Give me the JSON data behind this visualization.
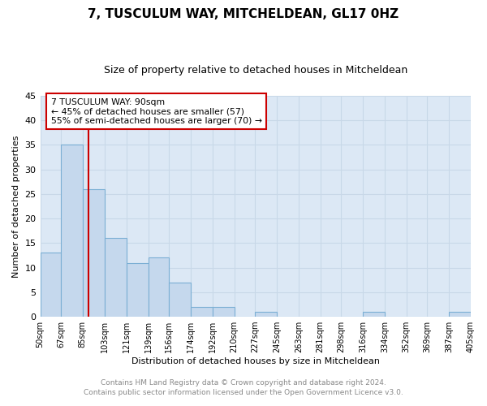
{
  "title": "7, TUSCULUM WAY, MITCHELDEAN, GL17 0HZ",
  "subtitle": "Size of property relative to detached houses in Mitcheldean",
  "xlabel": "Distribution of detached houses by size in Mitcheldean",
  "ylabel": "Number of detached properties",
  "footer_line1": "Contains HM Land Registry data © Crown copyright and database right 2024.",
  "footer_line2": "Contains public sector information licensed under the Open Government Licence v3.0.",
  "bins": [
    50,
    67,
    85,
    103,
    121,
    139,
    156,
    174,
    192,
    210,
    227,
    245,
    263,
    281,
    298,
    316,
    334,
    352,
    369,
    387,
    405
  ],
  "bin_labels": [
    "50sqm",
    "67sqm",
    "85sqm",
    "103sqm",
    "121sqm",
    "139sqm",
    "156sqm",
    "174sqm",
    "192sqm",
    "210sqm",
    "227sqm",
    "245sqm",
    "263sqm",
    "281sqm",
    "298sqm",
    "316sqm",
    "334sqm",
    "352sqm",
    "369sqm",
    "387sqm",
    "405sqm"
  ],
  "values": [
    13,
    35,
    26,
    16,
    11,
    12,
    7,
    2,
    2,
    0,
    1,
    0,
    0,
    0,
    0,
    1,
    0,
    0,
    0,
    1,
    0
  ],
  "bar_color": "#c5d8ed",
  "bar_edge_color": "#7bafd4",
  "grid_color": "#c8d8e8",
  "plot_bg_color": "#dce8f5",
  "fig_bg_color": "#ffffff",
  "vline_x": 90,
  "vline_color": "#cc0000",
  "ylim": [
    0,
    45
  ],
  "yticks": [
    0,
    5,
    10,
    15,
    20,
    25,
    30,
    35,
    40,
    45
  ],
  "annotation_box_text": "7 TUSCULUM WAY: 90sqm\n← 45% of detached houses are smaller (57)\n55% of semi-detached houses are larger (70) →",
  "annotation_box_color": "#cc0000",
  "annotation_box_bg": "#ffffff",
  "title_fontsize": 11,
  "subtitle_fontsize": 9,
  "ylabel_fontsize": 8,
  "xlabel_fontsize": 8,
  "footer_fontsize": 6.5,
  "footer_color": "#888888"
}
